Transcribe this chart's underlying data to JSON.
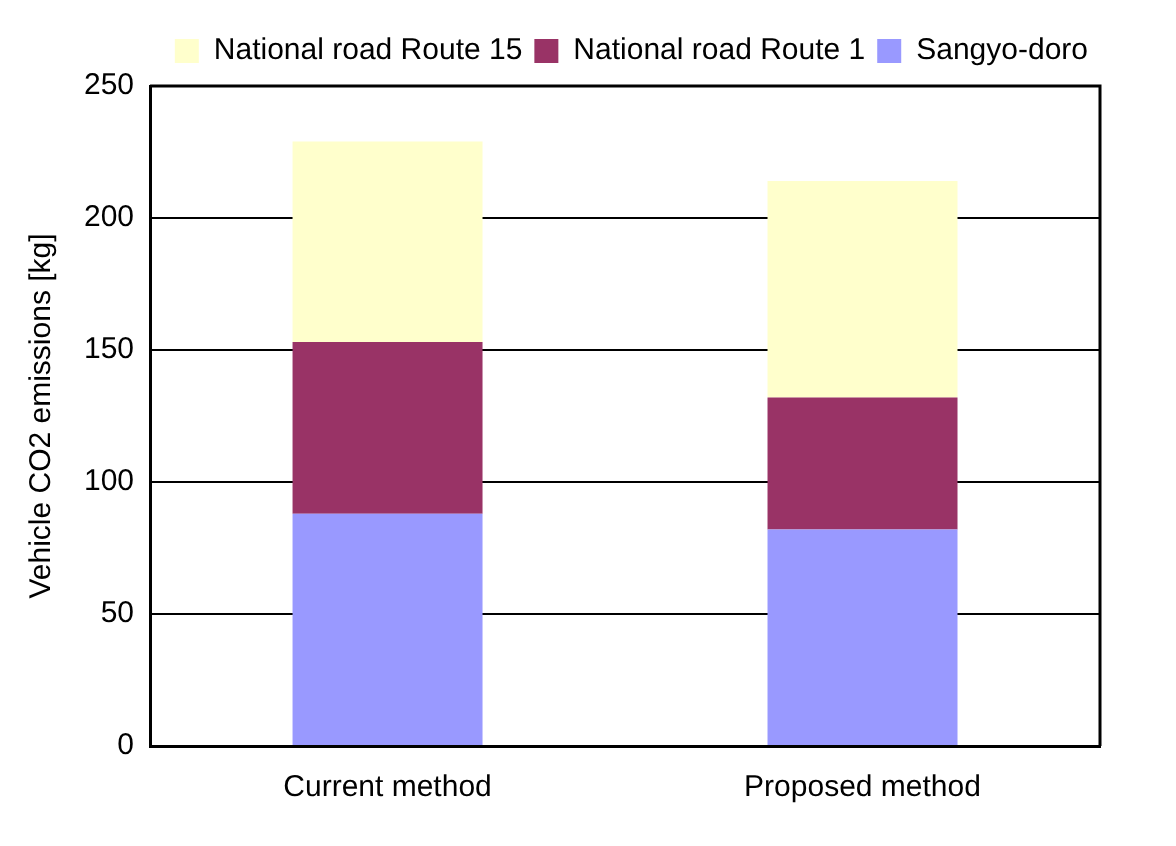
{
  "chart_data": {
    "type": "bar",
    "stacked": true,
    "ylabel": "Vehicle CO2 emissions [kg]",
    "categories": [
      "Current method",
      "Proposed method"
    ],
    "series": [
      {
        "name": "Sangyo-doro",
        "color": "#9999ff",
        "values": [
          88,
          82
        ]
      },
      {
        "name": "National road Route 1",
        "color": "#993366",
        "values": [
          65,
          50
        ]
      },
      {
        "name": "National road Route 15",
        "color": "#ffffcc",
        "values": [
          76,
          82
        ]
      }
    ],
    "ylim": [
      0,
      250
    ],
    "yticks": [
      0,
      50,
      100,
      150,
      200,
      250
    ],
    "grid": "y",
    "legend": "top right"
  }
}
